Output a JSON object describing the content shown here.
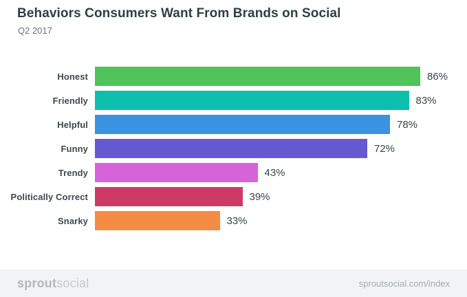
{
  "header": {
    "title": "Behaviors Consumers Want From Brands on Social",
    "subtitle": "Q2 2017"
  },
  "chart_data": {
    "type": "bar",
    "orientation": "horizontal",
    "title": "Behaviors Consumers Want From Brands on Social",
    "subtitle": "Q2 2017",
    "categories": [
      "Honest",
      "Friendly",
      "Helpful",
      "Funny",
      "Trendy",
      "Politically Correct",
      "Snarky"
    ],
    "values": [
      86,
      83,
      78,
      72,
      43,
      39,
      33
    ],
    "value_labels": [
      "86%",
      "83%",
      "78%",
      "72%",
      "43%",
      "39%",
      "33%"
    ],
    "bar_colors": [
      "#50c35a",
      "#0dbfad",
      "#3a93e0",
      "#6659d0",
      "#d763d8",
      "#cd3a66",
      "#f58c44"
    ],
    "xlabel": "",
    "ylabel": "",
    "xlim": [
      0,
      100
    ],
    "grid": false,
    "legend": false
  },
  "footer": {
    "logo_bold": "sprout",
    "logo_light": "social",
    "link": "sproutsocial.com/index"
  },
  "colors": {
    "title_text": "#2f3e45",
    "subtitle_text": "#63737a",
    "category_label_text": "#3d4852",
    "value_label_text": "#36444c",
    "footer_background": "#f2f3f4",
    "footer_text": "#a3abb0",
    "page_background": "#ffffff"
  }
}
